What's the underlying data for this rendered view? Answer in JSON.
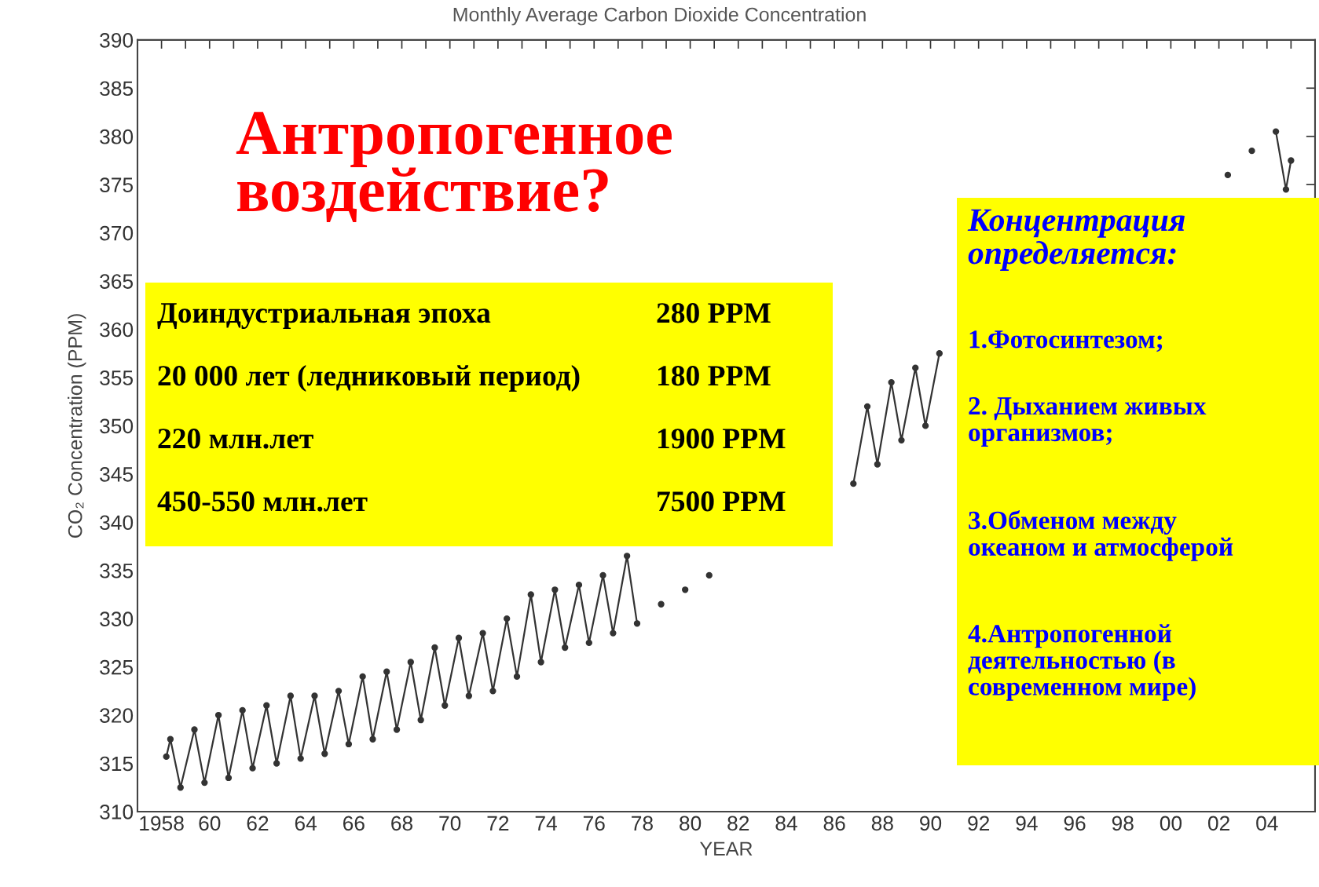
{
  "chart_data": {
    "type": "line",
    "title": "Monthly Average Carbon Dioxide Concentration",
    "xlabel": "YEAR",
    "ylabel": "CO₂ Concentration (PPM)",
    "x": [
      1958.2,
      1958.37,
      1958.79,
      1959.37,
      1959.79,
      1960.37,
      1960.79,
      1961.37,
      1961.79,
      1962.37,
      1962.79,
      1963.37,
      1963.79,
      1964.37,
      1964.79,
      1965.37,
      1965.79,
      1966.37,
      1966.79,
      1967.37,
      1967.79,
      1968.37,
      1968.79,
      1969.37,
      1969.79,
      1970.37,
      1970.79,
      1971.37,
      1971.79,
      1972.37,
      1972.79,
      1973.37,
      1973.79,
      1974.37,
      1974.79,
      1975.37,
      1975.79,
      1976.37,
      1976.79,
      1977.37,
      1977.79,
      1978.37,
      1978.79,
      1979.37,
      1979.79,
      1980.37,
      1980.79,
      1981.37,
      1981.79,
      1982.37,
      1982.79,
      1983.37,
      1983.79,
      1984.37,
      1984.79,
      1985.37,
      1985.79,
      1986.37,
      1986.79,
      1987.37,
      1987.79,
      1988.37,
      1988.79,
      1989.37,
      1989.79,
      1990.37,
      1990.79,
      1991.37,
      1991.79,
      1992.37,
      1992.79,
      1993.37,
      1993.79,
      1994.37,
      1994.79,
      1995.37,
      1995.79,
      1996.37,
      1996.79,
      1997.37,
      1997.79,
      1998.37,
      1998.79,
      1999.37,
      1999.79,
      2000.37,
      2000.79,
      2001.37,
      2001.79,
      2002.37,
      2002.79,
      2003.37,
      2003.79,
      2004.37,
      2004.79,
      2005.0
    ],
    "series": [
      {
        "color": "#333333",
        "values": [
          315.7,
          317.5,
          312.5,
          318.5,
          313.0,
          320.0,
          313.5,
          320.5,
          314.5,
          321.0,
          315.0,
          322.0,
          315.5,
          322.0,
          316.0,
          322.5,
          317.0,
          324.0,
          317.5,
          324.5,
          318.5,
          325.5,
          319.5,
          327.0,
          321.0,
          328.0,
          322.0,
          328.5,
          322.5,
          330.0,
          324.0,
          332.5,
          325.5,
          333.0,
          327.0,
          333.5,
          327.5,
          334.5,
          328.5,
          336.5,
          329.5,
          null,
          331.5,
          null,
          333.0,
          null,
          334.5,
          null,
          null,
          null,
          null,
          null,
          null,
          null,
          null,
          null,
          null,
          null,
          344.0,
          352.0,
          346.0,
          354.5,
          348.5,
          356.0,
          350.0,
          357.5,
          null,
          null,
          null,
          null,
          null,
          null,
          null,
          null,
          null,
          null,
          null,
          null,
          null,
          null,
          null,
          null,
          null,
          null,
          null,
          null,
          null,
          null,
          null,
          376.0,
          null,
          378.5,
          null,
          380.5,
          374.5,
          377.5
        ]
      }
    ],
    "xlim": [
      1957,
      2006
    ],
    "xticks": [
      {
        "value": 1957,
        "label": null
      },
      {
        "value": 1958,
        "label": "1958"
      },
      {
        "value": 1959,
        "label": null
      },
      {
        "value": 1960,
        "label": "60"
      },
      {
        "value": 1961,
        "label": null
      },
      {
        "value": 1962,
        "label": "62"
      },
      {
        "value": 1963,
        "label": null
      },
      {
        "value": 1964,
        "label": "64"
      },
      {
        "value": 1965,
        "label": null
      },
      {
        "value": 1966,
        "label": "66"
      },
      {
        "value": 1967,
        "label": null
      },
      {
        "value": 1968,
        "label": "68"
      },
      {
        "value": 1969,
        "label": null
      },
      {
        "value": 1970,
        "label": "70"
      },
      {
        "value": 1971,
        "label": null
      },
      {
        "value": 1972,
        "label": "72"
      },
      {
        "value": 1973,
        "label": null
      },
      {
        "value": 1974,
        "label": "74"
      },
      {
        "value": 1975,
        "label": null
      },
      {
        "value": 1976,
        "label": "76"
      },
      {
        "value": 1977,
        "label": null
      },
      {
        "value": 1978,
        "label": "78"
      },
      {
        "value": 1979,
        "label": null
      },
      {
        "value": 1980,
        "label": "80"
      },
      {
        "value": 1981,
        "label": null
      },
      {
        "value": 1982,
        "label": "82"
      },
      {
        "value": 1983,
        "label": null
      },
      {
        "value": 1984,
        "label": "84"
      },
      {
        "value": 1985,
        "label": null
      },
      {
        "value": 1986,
        "label": "86"
      },
      {
        "value": 1987,
        "label": null
      },
      {
        "value": 1988,
        "label": "88"
      },
      {
        "value": 1989,
        "label": null
      },
      {
        "value": 1990,
        "label": "90"
      },
      {
        "value": 1991,
        "label": null
      },
      {
        "value": 1992,
        "label": "92"
      },
      {
        "value": 1993,
        "label": null
      },
      {
        "value": 1994,
        "label": "94"
      },
      {
        "value": 1995,
        "label": null
      },
      {
        "value": 1996,
        "label": "96"
      },
      {
        "value": 1997,
        "label": null
      },
      {
        "value": 1998,
        "label": "98"
      },
      {
        "value": 1999,
        "label": null
      },
      {
        "value": 2000,
        "label": "00"
      },
      {
        "value": 2001,
        "label": null
      },
      {
        "value": 2002,
        "label": "02"
      },
      {
        "value": 2003,
        "label": null
      },
      {
        "value": 2004,
        "label": "04"
      },
      {
        "value": 2005,
        "label": null
      },
      {
        "value": 2006,
        "label": null
      }
    ],
    "ylim": [
      310,
      390
    ],
    "yticks": [
      310,
      315,
      320,
      325,
      330,
      335,
      340,
      345,
      350,
      355,
      360,
      365,
      370,
      375,
      380,
      385,
      390
    ],
    "marker": "circle",
    "line_style": "solid",
    "grid": false,
    "legend": false,
    "annotations": [
      "Антропогенное\nвоздействие?",
      "Доиндустриальная эпоха",
      "280 PPM",
      "20 000 лет (ледниковый период)",
      "180 PPM",
      "220 млн.лет",
      "1900 PPM",
      "450-550 млн.лет",
      "7500 PPM",
      "Концентрация\nопределяется:",
      "1.Фотосинтезом;",
      "2. Дыханием живых\nорганизмов;",
      "3.Обменом между\nокеаном и атмосферой",
      "4.Антропогенной\nдеятельностью (в\nсовременном мире)"
    ]
  }
}
